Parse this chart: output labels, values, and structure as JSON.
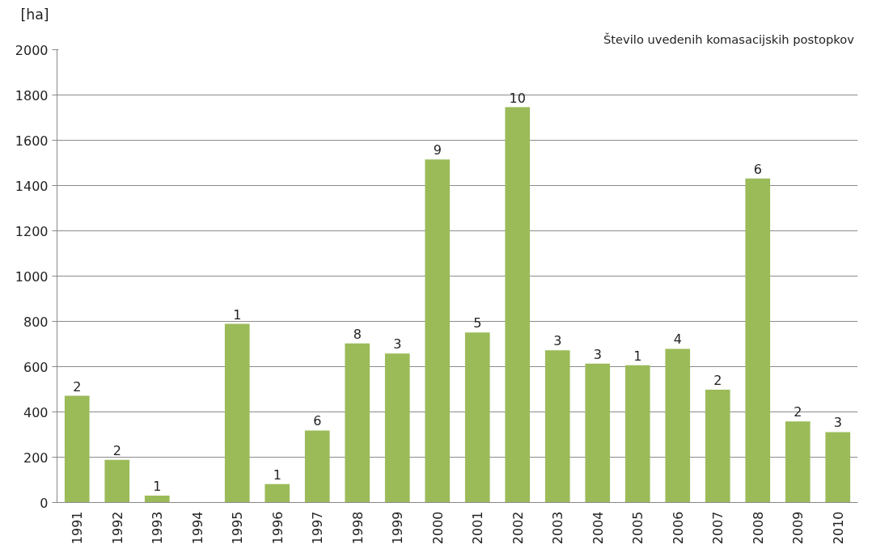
{
  "chart_data": {
    "type": "bar",
    "ylabel": "[ha]",
    "annotations": [
      "Število uvedenih komasacijskih  postopkov",
      {
        "text": "2",
        "x": "1991",
        "y": 471
      },
      {
        "text": "2",
        "x": "1992",
        "y": 188
      },
      {
        "text": "1",
        "x": "1993",
        "y": 30
      },
      {
        "text": "1",
        "x": "1995",
        "y": 789
      },
      {
        "text": "1",
        "x": "1996",
        "y": 81
      },
      {
        "text": "6",
        "x": "1997",
        "y": 318
      },
      {
        "text": "8",
        "x": "1998",
        "y": 703
      },
      {
        "text": "3",
        "x": "1999",
        "y": 658
      },
      {
        "text": "9",
        "x": "2000",
        "y": 1515
      },
      {
        "text": "5",
        "x": "2001",
        "y": 751
      },
      {
        "text": "10",
        "x": "2002",
        "y": 1746
      },
      {
        "text": "3",
        "x": "2003",
        "y": 672
      },
      {
        "text": "3",
        "x": "2004",
        "y": 613
      },
      {
        "text": "1",
        "x": "2005",
        "y": 606
      },
      {
        "text": "4",
        "x": "2006",
        "y": 679
      },
      {
        "text": "2",
        "x": "2007",
        "y": 498
      },
      {
        "text": "6",
        "x": "2008",
        "y": 1431
      },
      {
        "text": "2",
        "x": "2009",
        "y": 358
      },
      {
        "text": "3",
        "x": "2010",
        "y": 311
      }
    ],
    "categories": [
      "1991",
      "1992",
      "1993",
      "1994",
      "1995",
      "1996",
      "1997",
      "1998",
      "1999",
      "2000",
      "2001",
      "2002",
      "2003",
      "2004",
      "2005",
      "2006",
      "2007",
      "2008",
      "2009",
      "2010"
    ],
    "values": [
      471,
      188,
      30,
      0,
      789,
      81,
      318,
      703,
      658,
      1515,
      751,
      1746,
      672,
      613,
      606,
      679,
      498,
      1431,
      358,
      311
    ],
    "color": "#9bbb59",
    "ylim": [
      0,
      2000
    ],
    "yticks": [
      0,
      200,
      400,
      600,
      800,
      1000,
      1200,
      1400,
      1600,
      1800,
      2000
    ],
    "grid": "y"
  }
}
